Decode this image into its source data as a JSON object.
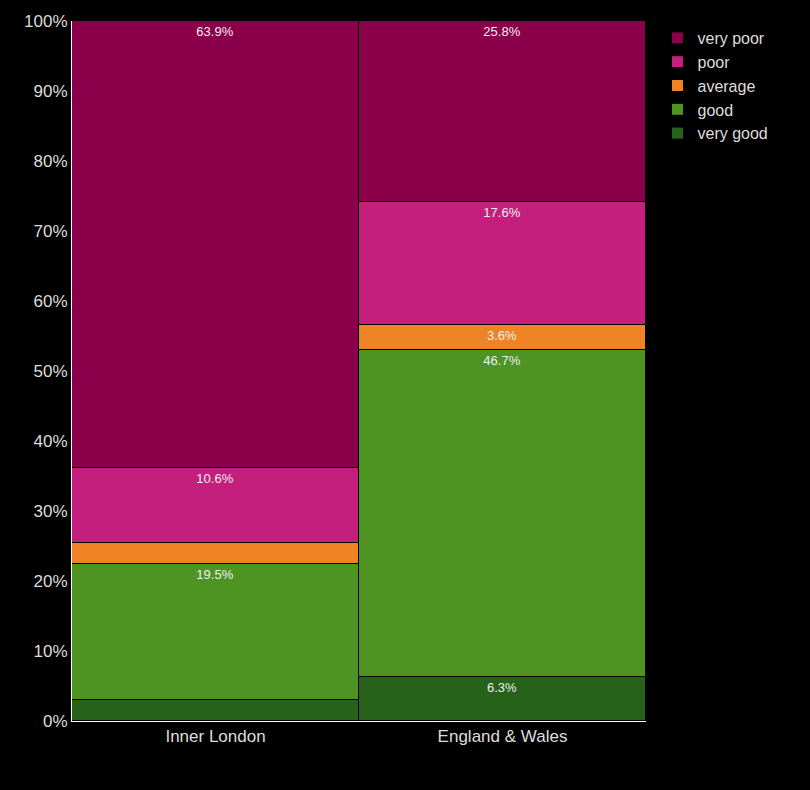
{
  "chart_data": {
    "type": "bar",
    "stacked": true,
    "data_labels": true,
    "legend": "upper right",
    "categories": [
      "Inner London",
      "England & Wales"
    ],
    "ylim": [
      0,
      100
    ],
    "yticks": [
      {
        "value": 0,
        "label": "0%"
      },
      {
        "value": 10,
        "label": "10%"
      },
      {
        "value": 20,
        "label": "20%"
      },
      {
        "value": 30,
        "label": "30%"
      },
      {
        "value": 40,
        "label": "40%"
      },
      {
        "value": 50,
        "label": "50%"
      },
      {
        "value": 60,
        "label": "60%"
      },
      {
        "value": 70,
        "label": "70%"
      },
      {
        "value": 80,
        "label": "80%"
      },
      {
        "value": 90,
        "label": "90%"
      },
      {
        "value": 100,
        "label": "100%"
      }
    ],
    "series": [
      {
        "name": "very good",
        "color": "#27621a",
        "values": [
          3.0,
          6.3
        ],
        "value_labels": [
          null,
          "6.3%"
        ]
      },
      {
        "name": "good",
        "color": "#4e9423",
        "values": [
          19.5,
          46.7
        ],
        "value_labels": [
          "19.5%",
          "46.7%"
        ]
      },
      {
        "name": "average",
        "color": "#ef8427",
        "values": [
          3.0,
          3.6
        ],
        "value_labels": [
          null,
          "3.6%"
        ]
      },
      {
        "name": "poor",
        "color": "#c51f7d",
        "values": [
          10.6,
          17.6
        ],
        "value_labels": [
          "10.6%",
          "17.6%"
        ]
      },
      {
        "name": "very poor",
        "color": "#8b004b",
        "values": [
          63.9,
          25.8
        ],
        "value_labels": [
          "63.9%",
          "25.8%"
        ]
      }
    ]
  }
}
